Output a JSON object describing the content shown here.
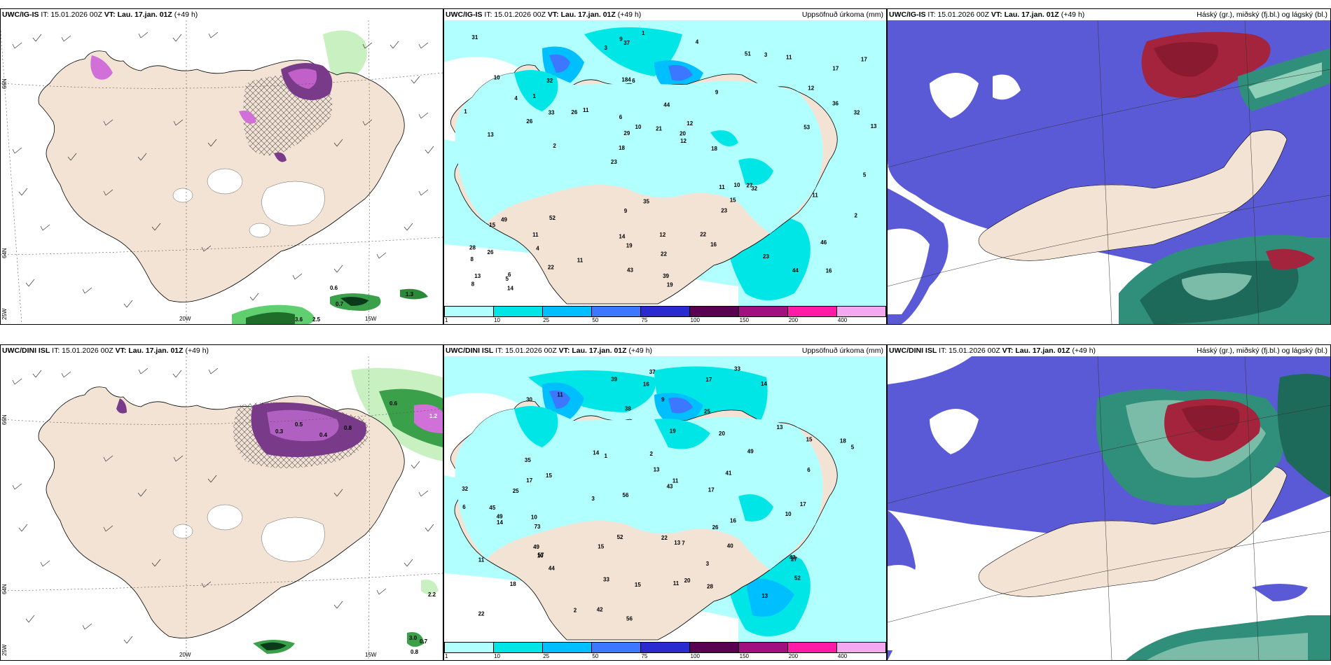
{
  "rows": [
    {
      "model": "UWC/IG-IS",
      "init": "IT: 15.01.2026 00Z",
      "valid": "VT: Lau. 17.jan. 01Z",
      "lead": "(+49 h)",
      "precip_values": [
        "16",
        "13",
        "17",
        "23",
        "9",
        "6",
        "184",
        "44",
        "49",
        "11",
        "8",
        "4",
        "6",
        "12",
        "32",
        "10",
        "37",
        "13",
        "11",
        "36",
        "18",
        "14",
        "29",
        "32",
        "51",
        "52",
        "44",
        "46",
        "27",
        "19",
        "26",
        "26",
        "23",
        "22",
        "32",
        "20",
        "13",
        "19",
        "12",
        "15",
        "12",
        "17",
        "15",
        "16",
        "11",
        "14",
        "8",
        "12",
        "11",
        "1",
        "2",
        "1",
        "1",
        "3",
        "5",
        "4",
        "3",
        "10",
        "2",
        "9",
        "11",
        "10",
        "33",
        "28",
        "31",
        "4",
        "5",
        "6",
        "22",
        "21",
        "26",
        "18",
        "11",
        "43",
        "53",
        "35",
        "23",
        "39",
        "22",
        "9"
      ],
      "wind_labels": [
        {
          "v": "0.6",
          "c": "#000"
        },
        {
          "v": "0.7",
          "c": "#000"
        },
        {
          "v": "3.6",
          "c": "#000"
        },
        {
          "v": "2.5",
          "c": "#000"
        },
        {
          "v": "1.3",
          "c": "#000"
        }
      ],
      "cloud_title": "Háský (gr.), miðský (fj.bl.) og lágský (bl.)"
    },
    {
      "model": "UWC/DINI ISL",
      "init": "IT: 15.01.2026 00Z",
      "valid": "VT: Lau. 17.jan. 01Z",
      "lead": "(+49 h)",
      "precip_values": [
        "18",
        "14",
        "11",
        "13",
        "13",
        "15",
        "73",
        "57",
        "15",
        "49",
        "45",
        "37",
        "40",
        "43",
        "56",
        "39",
        "52",
        "32",
        "10",
        "42",
        "28",
        "16",
        "38",
        "11",
        "13",
        "33",
        "49",
        "17",
        "19",
        "16",
        "35",
        "44",
        "20",
        "22",
        "27",
        "14",
        "18",
        "17",
        "20",
        "10",
        "5",
        "9",
        "15",
        "10",
        "6",
        "17",
        "26",
        "11",
        "15",
        "3",
        "1",
        "2",
        "2",
        "6",
        "3",
        "7",
        "14",
        "43",
        "30",
        "25",
        "22",
        "33",
        "25",
        "56",
        "52",
        "11",
        "49",
        "41",
        "17",
        "13"
      ],
      "wind_labels": [
        {
          "v": "0.3",
          "c": "#000"
        },
        {
          "v": "0.5",
          "c": "#000"
        },
        {
          "v": "0.4",
          "c": "#000"
        },
        {
          "v": "0.8",
          "c": "#000"
        },
        {
          "v": "1.2",
          "c": "#fff"
        },
        {
          "v": "0.6",
          "c": "#000"
        },
        {
          "v": "2.2",
          "c": "#000"
        },
        {
          "v": "3.0",
          "c": "#000"
        },
        {
          "v": "0.7",
          "c": "#000"
        },
        {
          "v": "0.8",
          "c": "#000"
        }
      ],
      "cloud_title": "Háský (gr.), miðský (fj.bl.) og lágský (bl.)"
    }
  ],
  "precip_title": "Uppsöfnuð úrkoma (mm)",
  "colorbar": {
    "colors": [
      "#b2ffff",
      "#00e6e6",
      "#00bfff",
      "#3c78ff",
      "#2a2ad0",
      "#5a0050",
      "#a0107e",
      "#ff1aa8",
      "#f4a8f0"
    ],
    "ticks": [
      "1",
      "10",
      "25",
      "50",
      "75",
      "100",
      "150",
      "200",
      "400"
    ]
  },
  "grid_labels": {
    "lat_66": "66N",
    "lat_64": "64N",
    "lat_25w": "25W",
    "lon_20w": "20W",
    "lon_15w": "15W"
  },
  "colors": {
    "land": "#f3e3d4",
    "sea_wind": "#ffffff",
    "precip_light": "#b2ffff",
    "low_cloud": "#5a5ad6",
    "high_cloud": "#a3243c",
    "mid_cloud": "#2f8f7a"
  }
}
